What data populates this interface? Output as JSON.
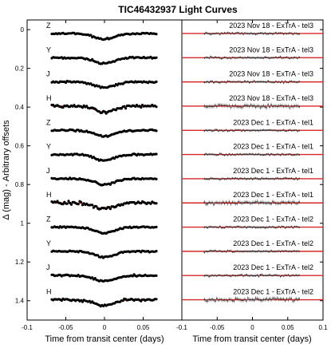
{
  "chart_data": {
    "type": "scatter",
    "title": "TIC46432937 Light Curves",
    "ylabel": "Δ (mag) - Arbitrary offsets",
    "xlabel": "Time from transit center (days)",
    "xlim": [
      -0.1,
      0.1
    ],
    "ylim_inverted": [
      -0.05,
      1.5
    ],
    "transit_depth_mag": 0.03,
    "model_color": "#d62728",
    "data_color": "#000000",
    "panels": [
      {
        "name": "left",
        "xticks": [
          "-0.1",
          "-0.05",
          "0",
          "0.05"
        ],
        "yticks": [
          "0",
          "0.2",
          "0.4",
          "0.6",
          "0.8",
          "1",
          "1.2",
          "1.4"
        ],
        "style": "detrended data with transit model"
      },
      {
        "name": "right",
        "xticks": [
          "-0.1",
          "-0.05",
          "0",
          "0.05",
          "0.1"
        ],
        "style": "residuals with error bars"
      }
    ],
    "series": [
      {
        "band": "Z",
        "date_label": "2023 Nov 18 - ExTrA - tel3",
        "offset": 0.02
      },
      {
        "band": "Y",
        "date_label": "2023 Nov 18 - ExTrA - tel3",
        "offset": 0.145
      },
      {
        "band": "J",
        "date_label": "2023 Nov 18 - ExTrA - tel3",
        "offset": 0.27
      },
      {
        "band": "H",
        "date_label": "2023 Nov 18 - ExTrA - tel3",
        "offset": 0.395
      },
      {
        "band": "Z",
        "date_label": "2023 Dec 1 - ExTrA - tel1",
        "offset": 0.52
      },
      {
        "band": "Y",
        "date_label": "2023 Dec 1 - ExTrA - tel1",
        "offset": 0.645
      },
      {
        "band": "J",
        "date_label": "2023 Dec 1 - ExTrA - tel1",
        "offset": 0.77
      },
      {
        "band": "H",
        "date_label": "2023 Dec 1 - ExTrA - tel1",
        "offset": 0.895
      },
      {
        "band": "Z",
        "date_label": "2023 Dec 1 - ExTrA - tel2",
        "offset": 1.02
      },
      {
        "band": "Y",
        "date_label": "2023 Dec 1 - ExTrA - tel2",
        "offset": 1.145
      },
      {
        "band": "J",
        "date_label": "2023 Dec 1 - ExTrA - tel2",
        "offset": 1.27
      },
      {
        "band": "H",
        "date_label": "2023 Dec 1 - ExTrA - tel2",
        "offset": 1.395
      }
    ]
  }
}
